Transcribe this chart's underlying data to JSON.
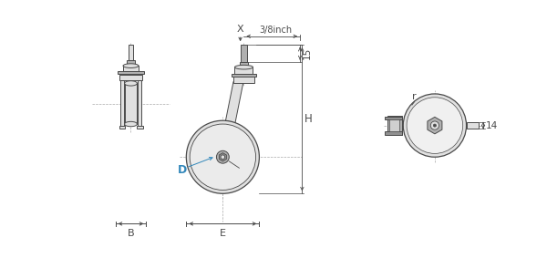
{
  "bg_color": "#ffffff",
  "line_color": "#4a4a4a",
  "gray_fill": "#cccccc",
  "light_gray": "#e0e0e0",
  "med_gray": "#b0b0b0",
  "dark_gray": "#909090",
  "dim_color": "#333333",
  "blue_label": "#3388bb",
  "labels": {
    "B": "B",
    "E": "E",
    "H": "H",
    "D": "D",
    "X": "X",
    "r": "r",
    "15": "15",
    "14": "14",
    "3/8inch": "3/8inch"
  }
}
